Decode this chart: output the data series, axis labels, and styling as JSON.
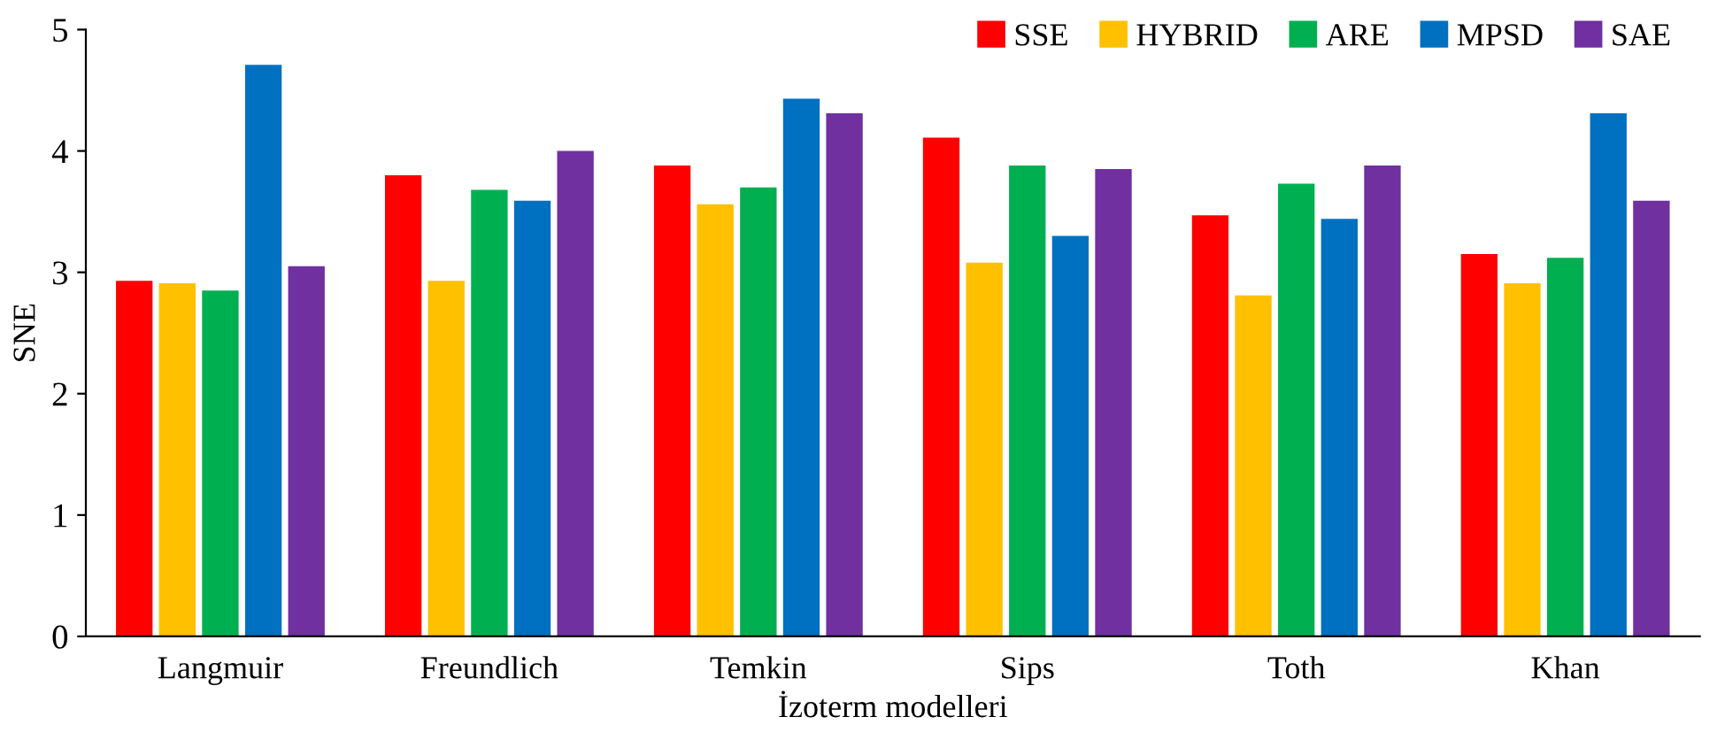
{
  "chart_data": {
    "type": "bar",
    "xlabel": "İzoterm modelleri",
    "ylabel": "SNE",
    "categories": [
      "Langmuir",
      "Freundlich",
      "Temkin",
      "Sips",
      "Toth",
      "Khan"
    ],
    "series": [
      {
        "name": "SSE",
        "color": "#ff0000",
        "values": [
          2.93,
          3.8,
          3.88,
          4.11,
          3.47,
          3.15
        ]
      },
      {
        "name": "HYBRID",
        "color": "#ffc000",
        "values": [
          2.91,
          2.93,
          3.56,
          3.08,
          2.81,
          2.91
        ]
      },
      {
        "name": "ARE",
        "color": "#00b050",
        "values": [
          2.85,
          3.68,
          3.7,
          3.88,
          3.73,
          3.12
        ]
      },
      {
        "name": "MPSD",
        "color": "#0070c0",
        "values": [
          4.71,
          3.59,
          4.43,
          3.3,
          3.44,
          4.31
        ]
      },
      {
        "name": "SAE",
        "color": "#7030a0",
        "values": [
          3.05,
          4.0,
          4.31,
          3.85,
          3.88,
          3.59
        ]
      }
    ],
    "ylim": [
      0,
      5
    ],
    "yticks": [
      0,
      1,
      2,
      3,
      4,
      5
    ],
    "grid": false,
    "legend": "top right"
  }
}
